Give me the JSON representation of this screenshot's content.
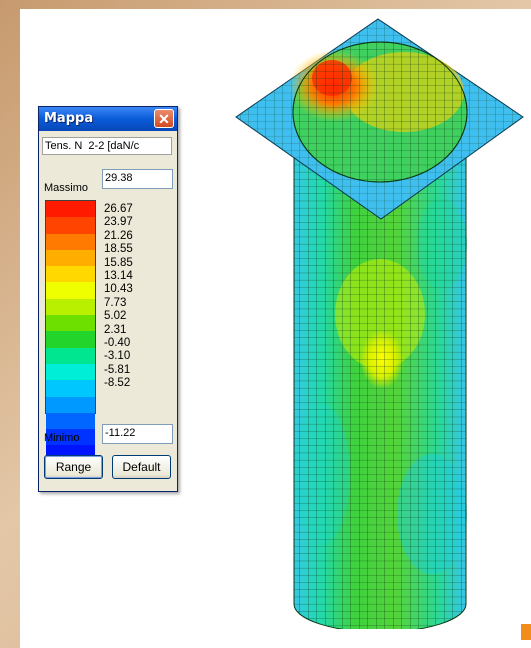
{
  "window": {
    "title": "Mappa",
    "close_glyph": "✕",
    "quantity_label": "Tens. N",
    "quantity_value": "2-2 [daN/c",
    "max_label": "Massimo",
    "max_value": "29.38",
    "min_label": "Minimo",
    "min_value": "-11.22",
    "range_button": "Range",
    "default_button": "Default"
  },
  "legend": {
    "values": [
      "26.67",
      "23.97",
      "21.26",
      "18.55",
      "15.85",
      "13.14",
      "10.43",
      "7.73",
      "5.02",
      "2.31",
      "-0.40",
      "-3.10",
      "-5.81",
      "-8.52"
    ],
    "colors": [
      "#ff1a00",
      "#ff4400",
      "#ff7a00",
      "#ffae00",
      "#ffd800",
      "#f0ff00",
      "#b8f000",
      "#6ee000",
      "#23d52a",
      "#00e690",
      "#00eed8",
      "#00c8ff",
      "#0099ff",
      "#0066ff",
      "#0033ff",
      "#0014ff",
      "#0000e6"
    ]
  },
  "model": {
    "icons": [
      "column-mesh-icon"
    ],
    "color_top": "#33bbee",
    "color_body": "#2fd050"
  }
}
